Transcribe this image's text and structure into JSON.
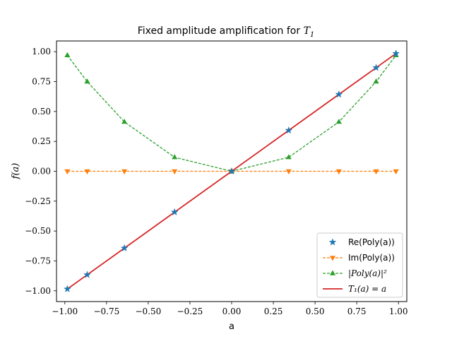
{
  "chart_data": {
    "type": "line",
    "title": {
      "text": "Fixed amplitude amplification for ",
      "math_base": "T",
      "math_sub": "1"
    },
    "xlabel": "a",
    "ylabel": "f(a)",
    "xlim": [
      -1.05,
      1.05
    ],
    "ylim": [
      -1.09,
      1.09
    ],
    "xticks": [
      -1.0,
      -0.75,
      -0.5,
      -0.25,
      0.0,
      0.25,
      0.5,
      0.75,
      1.0
    ],
    "xtick_labels": [
      "−1.00",
      "−0.75",
      "−0.50",
      "−0.25",
      "0.00",
      "0.25",
      "0.50",
      "0.75",
      "1.00"
    ],
    "yticks": [
      -1.0,
      -0.75,
      -0.5,
      -0.25,
      0.0,
      0.25,
      0.5,
      0.75,
      1.0
    ],
    "ytick_labels": [
      "−1.00",
      "−0.75",
      "−0.50",
      "−0.25",
      "0.00",
      "0.25",
      "0.50",
      "0.75",
      "1.00"
    ],
    "grid": false,
    "legend_position": "bottom-right",
    "x": [
      -0.985,
      -0.866,
      -0.643,
      -0.342,
      0.0,
      0.342,
      0.643,
      0.866,
      0.985
    ],
    "series": [
      {
        "name": "Re(Poly(a))",
        "style": "markers",
        "marker": "star",
        "color": "#1f77b4",
        "values": [
          -0.985,
          -0.866,
          -0.643,
          -0.342,
          0.0,
          0.342,
          0.643,
          0.866,
          0.985
        ]
      },
      {
        "name": "Im(Poly(a))",
        "style": "dashed",
        "marker": "triangle-down",
        "color": "#ff7f0e",
        "values": [
          0.0,
          0.0,
          0.0,
          0.0,
          0.0,
          0.0,
          0.0,
          0.0,
          0.0
        ]
      },
      {
        "name": "|Poly(a)|²",
        "style": "dashed",
        "marker": "triangle-up",
        "color": "#2ca02c",
        "values": [
          0.97,
          0.75,
          0.413,
          0.117,
          0.0,
          0.117,
          0.413,
          0.75,
          0.97
        ]
      },
      {
        "name": "T₁(a) = a",
        "style": "solid",
        "marker": "none",
        "color": "#d62728",
        "values": [
          -0.985,
          -0.866,
          -0.643,
          -0.342,
          0.0,
          0.342,
          0.643,
          0.866,
          0.985
        ]
      }
    ]
  }
}
